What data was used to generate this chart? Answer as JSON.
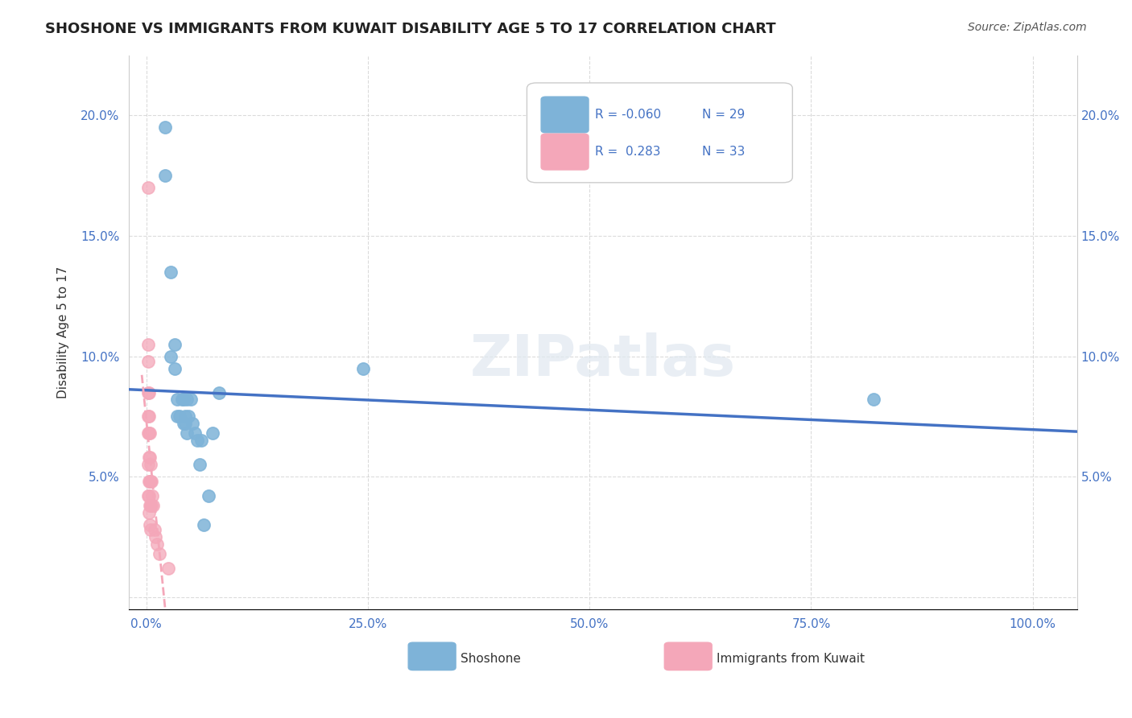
{
  "title": "SHOSHONE VS IMMIGRANTS FROM KUWAIT DISABILITY AGE 5 TO 17 CORRELATION CHART",
  "source": "Source: ZipAtlas.com",
  "xlabel": "",
  "ylabel": "Disability Age 5 to 17",
  "watermark": "ZIPatlas",
  "shoshone_x": [
    0.021,
    0.021,
    0.028,
    0.028,
    0.032,
    0.032,
    0.035,
    0.035,
    0.038,
    0.04,
    0.042,
    0.042,
    0.044,
    0.044,
    0.046,
    0.046,
    0.048,
    0.05,
    0.052,
    0.055,
    0.058,
    0.06,
    0.062,
    0.065,
    0.07,
    0.075,
    0.082,
    0.245,
    0.82
  ],
  "shoshone_y": [
    0.195,
    0.175,
    0.135,
    0.1,
    0.105,
    0.095,
    0.082,
    0.075,
    0.075,
    0.082,
    0.082,
    0.072,
    0.072,
    0.075,
    0.082,
    0.068,
    0.075,
    0.082,
    0.072,
    0.068,
    0.065,
    0.055,
    0.065,
    0.03,
    0.042,
    0.068,
    0.085,
    0.095,
    0.082
  ],
  "kuwait_x": [
    0.002,
    0.002,
    0.002,
    0.002,
    0.002,
    0.002,
    0.002,
    0.002,
    0.003,
    0.003,
    0.003,
    0.003,
    0.003,
    0.003,
    0.003,
    0.004,
    0.004,
    0.004,
    0.004,
    0.004,
    0.005,
    0.005,
    0.005,
    0.005,
    0.006,
    0.006,
    0.007,
    0.008,
    0.009,
    0.01,
    0.012,
    0.015,
    0.025
  ],
  "kuwait_y": [
    0.17,
    0.105,
    0.098,
    0.085,
    0.075,
    0.068,
    0.055,
    0.042,
    0.085,
    0.075,
    0.068,
    0.058,
    0.048,
    0.042,
    0.035,
    0.068,
    0.058,
    0.048,
    0.038,
    0.03,
    0.055,
    0.048,
    0.038,
    0.028,
    0.048,
    0.038,
    0.042,
    0.038,
    0.028,
    0.025,
    0.022,
    0.018,
    0.012
  ],
  "shoshone_color": "#7eb3d8",
  "kuwait_color": "#f4a7b9",
  "shoshone_line_color": "#4472c4",
  "kuwait_line_color": "#e8a0b0",
  "R_shoshone": -0.06,
  "N_shoshone": 29,
  "R_kuwait": 0.283,
  "N_kuwait": 33,
  "xlim": [
    -0.02,
    1.05
  ],
  "ylim": [
    -0.005,
    0.225
  ],
  "xticks": [
    0.0,
    0.25,
    0.5,
    0.75,
    1.0
  ],
  "xtick_labels": [
    "0.0%",
    "25.0%",
    "50.0%",
    "75.0%",
    "100.0%"
  ],
  "yticks": [
    0.0,
    0.05,
    0.1,
    0.15,
    0.2
  ],
  "ytick_labels": [
    "",
    "5.0%",
    "10.0%",
    "15.0%",
    "20.0%"
  ],
  "right_ytick_labels": [
    "",
    "5.0%",
    "10.0%",
    "15.0%",
    "20.0%"
  ]
}
